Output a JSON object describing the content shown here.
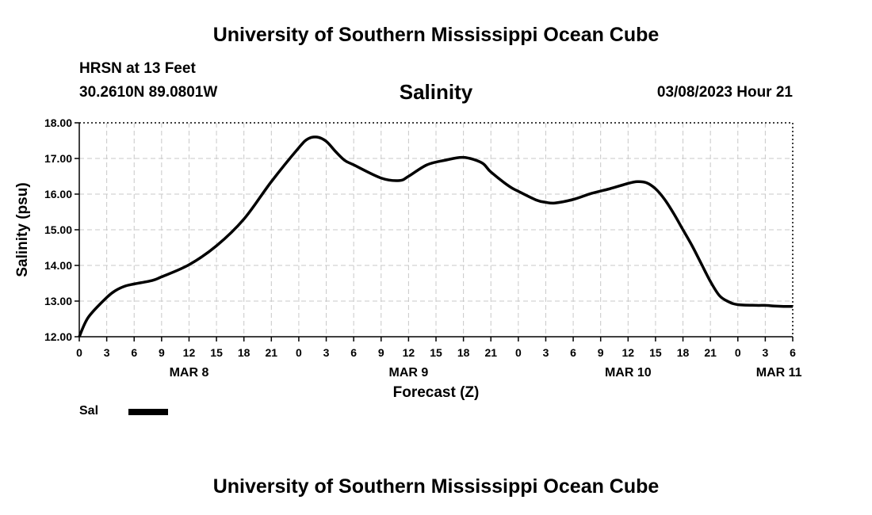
{
  "header": {
    "title": "University of Southern Mississippi Ocean Cube",
    "station": "HRSN at 13 Feet",
    "coords": "30.2610N  89.0801W",
    "chart_title": "Salinity",
    "datetime": "03/08/2023 Hour 21"
  },
  "footer": {
    "title": "University of Southern Mississippi Ocean Cube"
  },
  "legend": {
    "label": "Sal"
  },
  "chart_data": {
    "type": "line",
    "title": "Salinity",
    "xlabel": "Forecast (Z)",
    "ylabel": "Salinity (psu)",
    "xlim": [
      0,
      78
    ],
    "ylim": [
      12.0,
      18.0
    ],
    "y_ticks": [
      "12.00",
      "13.00",
      "14.00",
      "15.00",
      "16.00",
      "17.00",
      "18.00"
    ],
    "x_tick_labels": [
      "0",
      "3",
      "6",
      "9",
      "12",
      "15",
      "18",
      "21",
      "0",
      "3",
      "6",
      "9",
      "12",
      "15",
      "18",
      "21",
      "0",
      "3",
      "6",
      "9",
      "12",
      "15",
      "18",
      "21",
      "0",
      "3",
      "6"
    ],
    "day_labels": [
      {
        "label": "MAR 8",
        "hour": 12
      },
      {
        "label": "MAR 9",
        "hour": 36
      },
      {
        "label": "MAR 10",
        "hour": 60
      },
      {
        "label": "MAR 11",
        "hour": 76.5
      }
    ],
    "grid": true,
    "series": [
      {
        "name": "Sal",
        "color": "#000000",
        "points": [
          [
            0,
            12.0
          ],
          [
            1,
            12.55
          ],
          [
            3,
            13.1
          ],
          [
            4,
            13.3
          ],
          [
            5,
            13.42
          ],
          [
            6,
            13.48
          ],
          [
            8,
            13.58
          ],
          [
            9,
            13.68
          ],
          [
            12,
            14.02
          ],
          [
            15,
            14.55
          ],
          [
            18,
            15.3
          ],
          [
            21,
            16.35
          ],
          [
            24,
            17.3
          ],
          [
            25,
            17.55
          ],
          [
            26,
            17.6
          ],
          [
            27,
            17.48
          ],
          [
            28,
            17.2
          ],
          [
            29,
            16.95
          ],
          [
            30,
            16.82
          ],
          [
            33,
            16.45
          ],
          [
            35,
            16.38
          ],
          [
            36,
            16.5
          ],
          [
            38,
            16.82
          ],
          [
            40,
            16.95
          ],
          [
            42,
            17.03
          ],
          [
            44,
            16.88
          ],
          [
            45,
            16.62
          ],
          [
            47,
            16.22
          ],
          [
            48,
            16.08
          ],
          [
            50,
            15.83
          ],
          [
            51,
            15.77
          ],
          [
            52,
            15.75
          ],
          [
            54,
            15.85
          ],
          [
            56,
            16.02
          ],
          [
            58,
            16.15
          ],
          [
            60,
            16.3
          ],
          [
            61,
            16.35
          ],
          [
            62,
            16.32
          ],
          [
            63,
            16.15
          ],
          [
            64,
            15.85
          ],
          [
            65,
            15.45
          ],
          [
            66,
            15.0
          ],
          [
            67,
            14.55
          ],
          [
            68,
            14.05
          ],
          [
            69,
            13.55
          ],
          [
            70,
            13.15
          ],
          [
            71,
            12.98
          ],
          [
            72,
            12.9
          ],
          [
            74,
            12.88
          ],
          [
            75,
            12.88
          ],
          [
            76,
            12.86
          ],
          [
            77,
            12.85
          ],
          [
            78,
            12.85
          ]
        ]
      }
    ]
  }
}
